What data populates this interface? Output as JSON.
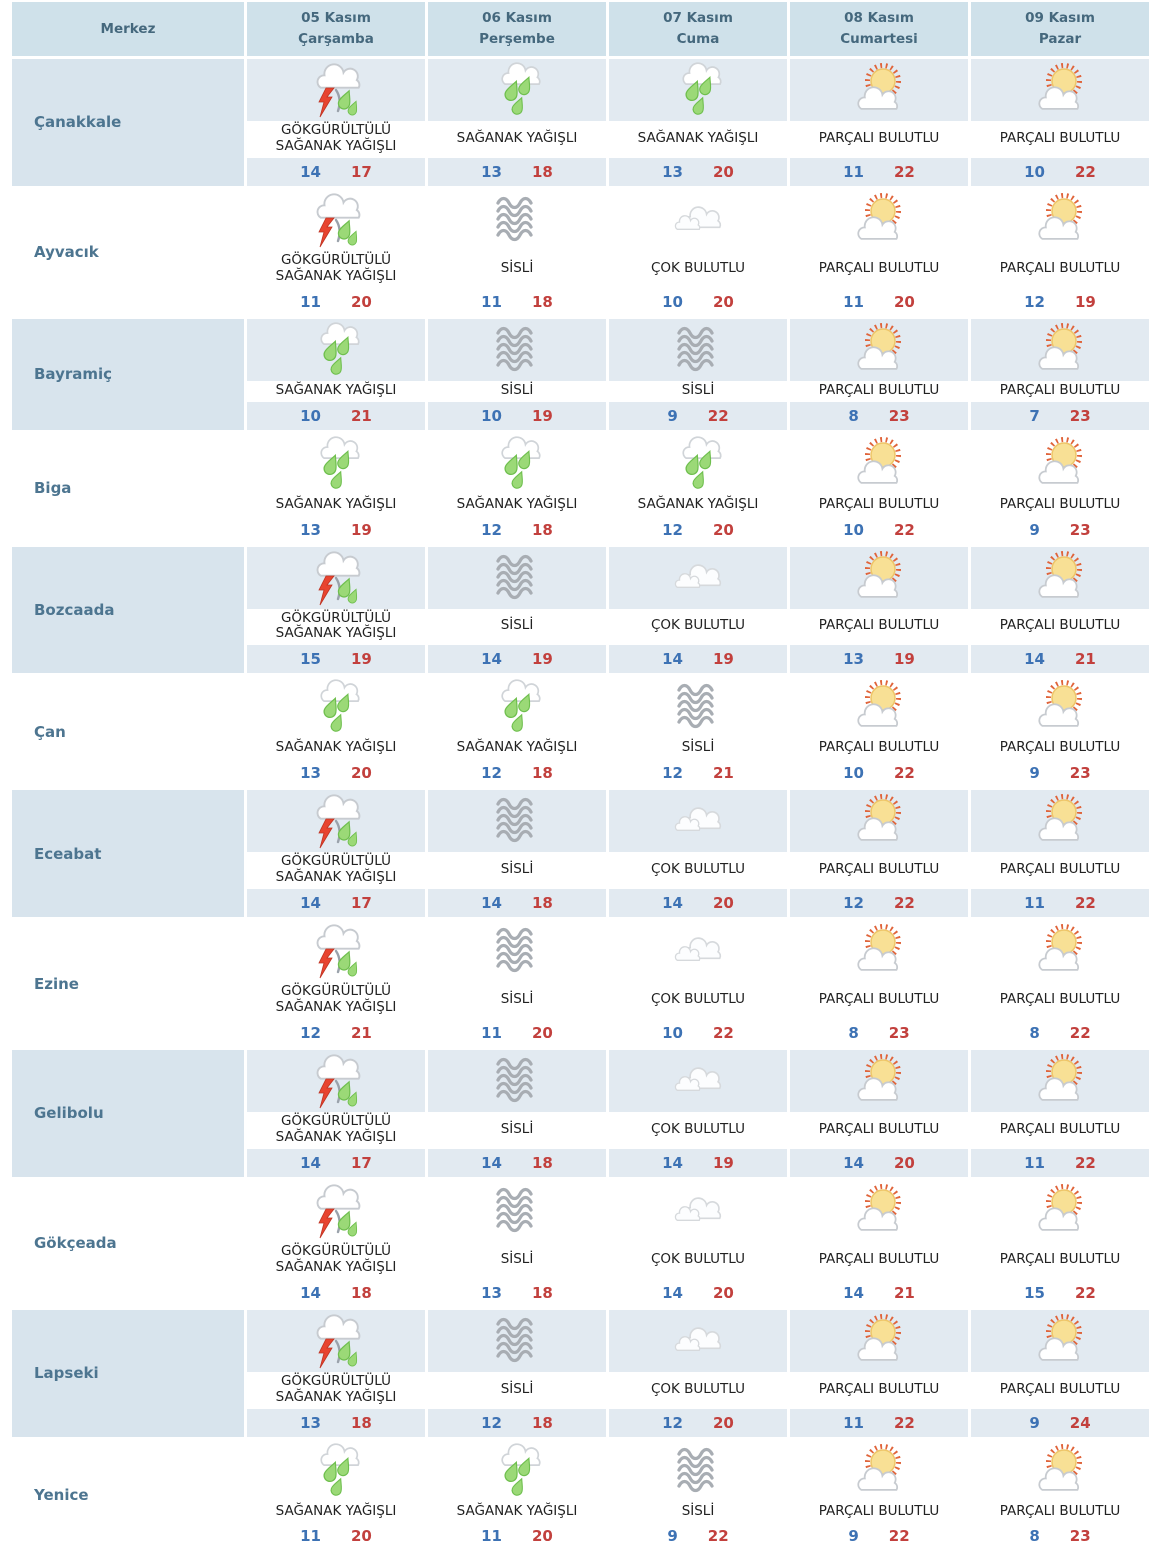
{
  "colors": {
    "header_bg": "#cfe1ea",
    "header_text": "#45687d",
    "row_tint_bg": "#e2eaf1",
    "city_cell_tint_bg": "#d8e4ed",
    "city_text": "#4d7590",
    "description_text": "#222222",
    "min_temp_blue": "#3d72b4",
    "max_temp_red": "#c2403d",
    "rain_drop_green": "#9bd977",
    "lightning_red": "#e8442f",
    "sun_yellow": "#f8e095",
    "sun_ray_orange": "#e0643a",
    "fog_gray": "#a8adb3",
    "cloud_outline_gray": "#c7cbd0"
  },
  "table": {
    "merkez_header": "Merkez",
    "day_headers": [
      {
        "date": "05 Kasım",
        "weekday": "Çarşamba"
      },
      {
        "date": "06 Kasım",
        "weekday": "Perşembe"
      },
      {
        "date": "07 Kasım",
        "weekday": "Cuma"
      },
      {
        "date": "08 Kasım",
        "weekday": "Cumartesi"
      },
      {
        "date": "09 Kasım",
        "weekday": "Pazar"
      }
    ],
    "rows": [
      {
        "city": "Çanakkale",
        "cells": [
          {
            "icon": "thunderstorm",
            "description": "GÖKGÜRÜLTÜLÜ SAĞANAK YAĞIŞLI",
            "min": 14,
            "max": 17
          },
          {
            "icon": "rain",
            "description": "SAĞANAK YAĞIŞLI",
            "min": 13,
            "max": 18
          },
          {
            "icon": "rain",
            "description": "SAĞANAK YAĞIŞLI",
            "min": 13,
            "max": 20
          },
          {
            "icon": "partly-cloudy",
            "description": "PARÇALI BULUTLU",
            "min": 11,
            "max": 22
          },
          {
            "icon": "partly-cloudy",
            "description": "PARÇALI BULUTLU",
            "min": 10,
            "max": 22
          }
        ]
      },
      {
        "city": "Ayvacık",
        "cells": [
          {
            "icon": "thunderstorm",
            "description": "GÖKGÜRÜLTÜLÜ SAĞANAK YAĞIŞLI",
            "min": 11,
            "max": 20
          },
          {
            "icon": "fog",
            "description": "SİSLİ",
            "min": 11,
            "max": 18
          },
          {
            "icon": "cloudy",
            "description": "ÇOK BULUTLU",
            "min": 10,
            "max": 20
          },
          {
            "icon": "partly-cloudy",
            "description": "PARÇALI BULUTLU",
            "min": 11,
            "max": 20
          },
          {
            "icon": "partly-cloudy",
            "description": "PARÇALI BULUTLU",
            "min": 12,
            "max": 19
          }
        ]
      },
      {
        "city": "Bayramiç",
        "cells": [
          {
            "icon": "rain",
            "description": "SAĞANAK YAĞIŞLI",
            "min": 10,
            "max": 21
          },
          {
            "icon": "fog",
            "description": "SİSLİ",
            "min": 10,
            "max": 19
          },
          {
            "icon": "fog",
            "description": "SİSLİ",
            "min": 9,
            "max": 22
          },
          {
            "icon": "partly-cloudy",
            "description": "PARÇALI BULUTLU",
            "min": 8,
            "max": 23
          },
          {
            "icon": "partly-cloudy",
            "description": "PARÇALI BULUTLU",
            "min": 7,
            "max": 23
          }
        ]
      },
      {
        "city": "Biga",
        "cells": [
          {
            "icon": "rain",
            "description": "SAĞANAK YAĞIŞLI",
            "min": 13,
            "max": 19
          },
          {
            "icon": "rain",
            "description": "SAĞANAK YAĞIŞLI",
            "min": 12,
            "max": 18
          },
          {
            "icon": "rain",
            "description": "SAĞANAK YAĞIŞLI",
            "min": 12,
            "max": 20
          },
          {
            "icon": "partly-cloudy",
            "description": "PARÇALI BULUTLU",
            "min": 10,
            "max": 22
          },
          {
            "icon": "partly-cloudy",
            "description": "PARÇALI BULUTLU",
            "min": 9,
            "max": 23
          }
        ]
      },
      {
        "city": "Bozcaada",
        "cells": [
          {
            "icon": "thunderstorm",
            "description": "GÖKGÜRÜLTÜLÜ SAĞANAK YAĞIŞLI",
            "min": 15,
            "max": 19
          },
          {
            "icon": "fog",
            "description": "SİSLİ",
            "min": 14,
            "max": 19
          },
          {
            "icon": "cloudy",
            "description": "ÇOK BULUTLU",
            "min": 14,
            "max": 19
          },
          {
            "icon": "partly-cloudy",
            "description": "PARÇALI BULUTLU",
            "min": 13,
            "max": 19
          },
          {
            "icon": "partly-cloudy",
            "description": "PARÇALI BULUTLU",
            "min": 14,
            "max": 21
          }
        ]
      },
      {
        "city": "Çan",
        "cells": [
          {
            "icon": "rain",
            "description": "SAĞANAK YAĞIŞLI",
            "min": 13,
            "max": 20
          },
          {
            "icon": "rain",
            "description": "SAĞANAK YAĞIŞLI",
            "min": 12,
            "max": 18
          },
          {
            "icon": "fog",
            "description": "SİSLİ",
            "min": 12,
            "max": 21
          },
          {
            "icon": "partly-cloudy",
            "description": "PARÇALI BULUTLU",
            "min": 10,
            "max": 22
          },
          {
            "icon": "partly-cloudy",
            "description": "PARÇALI BULUTLU",
            "min": 9,
            "max": 23
          }
        ]
      },
      {
        "city": "Eceabat",
        "cells": [
          {
            "icon": "thunderstorm",
            "description": "GÖKGÜRÜLTÜLÜ SAĞANAK YAĞIŞLI",
            "min": 14,
            "max": 17
          },
          {
            "icon": "fog",
            "description": "SİSLİ",
            "min": 14,
            "max": 18
          },
          {
            "icon": "cloudy",
            "description": "ÇOK BULUTLU",
            "min": 14,
            "max": 20
          },
          {
            "icon": "partly-cloudy",
            "description": "PARÇALI BULUTLU",
            "min": 12,
            "max": 22
          },
          {
            "icon": "partly-cloudy",
            "description": "PARÇALI BULUTLU",
            "min": 11,
            "max": 22
          }
        ]
      },
      {
        "city": "Ezine",
        "cells": [
          {
            "icon": "thunderstorm",
            "description": "GÖKGÜRÜLTÜLÜ SAĞANAK YAĞIŞLI",
            "min": 12,
            "max": 21
          },
          {
            "icon": "fog",
            "description": "SİSLİ",
            "min": 11,
            "max": 20
          },
          {
            "icon": "cloudy",
            "description": "ÇOK BULUTLU",
            "min": 10,
            "max": 22
          },
          {
            "icon": "partly-cloudy",
            "description": "PARÇALI BULUTLU",
            "min": 8,
            "max": 23
          },
          {
            "icon": "partly-cloudy",
            "description": "PARÇALI BULUTLU",
            "min": 8,
            "max": 22
          }
        ]
      },
      {
        "city": "Gelibolu",
        "cells": [
          {
            "icon": "thunderstorm",
            "description": "GÖKGÜRÜLTÜLÜ SAĞANAK YAĞIŞLI",
            "min": 14,
            "max": 17
          },
          {
            "icon": "fog",
            "description": "SİSLİ",
            "min": 14,
            "max": 18
          },
          {
            "icon": "cloudy",
            "description": "ÇOK BULUTLU",
            "min": 14,
            "max": 19
          },
          {
            "icon": "partly-cloudy",
            "description": "PARÇALI BULUTLU",
            "min": 14,
            "max": 20
          },
          {
            "icon": "partly-cloudy",
            "description": "PARÇALI BULUTLU",
            "min": 11,
            "max": 22
          }
        ]
      },
      {
        "city": "Gökçeada",
        "cells": [
          {
            "icon": "thunderstorm",
            "description": "GÖKGÜRÜLTÜLÜ SAĞANAK YAĞIŞLI",
            "min": 14,
            "max": 18
          },
          {
            "icon": "fog",
            "description": "SİSLİ",
            "min": 13,
            "max": 18
          },
          {
            "icon": "cloudy",
            "description": "ÇOK BULUTLU",
            "min": 14,
            "max": 20
          },
          {
            "icon": "partly-cloudy",
            "description": "PARÇALI BULUTLU",
            "min": 14,
            "max": 21
          },
          {
            "icon": "partly-cloudy",
            "description": "PARÇALI BULUTLU",
            "min": 15,
            "max": 22
          }
        ]
      },
      {
        "city": "Lapseki",
        "cells": [
          {
            "icon": "thunderstorm",
            "description": "GÖKGÜRÜLTÜLÜ SAĞANAK YAĞIŞLI",
            "min": 13,
            "max": 18
          },
          {
            "icon": "fog",
            "description": "SİSLİ",
            "min": 12,
            "max": 18
          },
          {
            "icon": "cloudy",
            "description": "ÇOK BULUTLU",
            "min": 12,
            "max": 20
          },
          {
            "icon": "partly-cloudy",
            "description": "PARÇALI BULUTLU",
            "min": 11,
            "max": 22
          },
          {
            "icon": "partly-cloudy",
            "description": "PARÇALI BULUTLU",
            "min": 9,
            "max": 24
          }
        ]
      },
      {
        "city": "Yenice",
        "cells": [
          {
            "icon": "rain",
            "description": "SAĞANAK YAĞIŞLI",
            "min": 11,
            "max": 20
          },
          {
            "icon": "rain",
            "description": "SAĞANAK YAĞIŞLI",
            "min": 11,
            "max": 20
          },
          {
            "icon": "fog",
            "description": "SİSLİ",
            "min": 9,
            "max": 22
          },
          {
            "icon": "partly-cloudy",
            "description": "PARÇALI BULUTLU",
            "min": 9,
            "max": 22
          },
          {
            "icon": "partly-cloudy",
            "description": "PARÇALI BULUTLU",
            "min": 8,
            "max": 23
          }
        ]
      }
    ]
  }
}
